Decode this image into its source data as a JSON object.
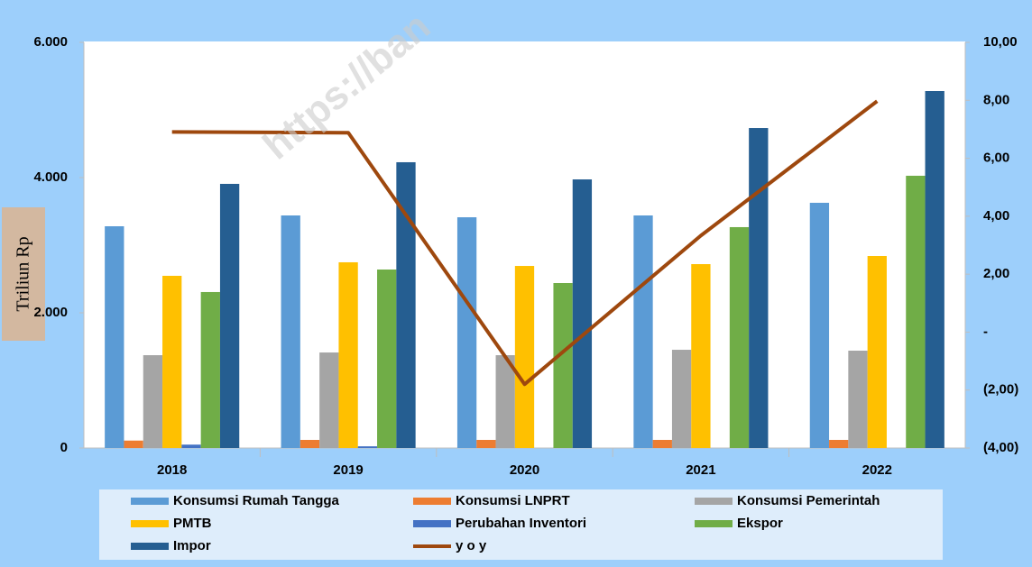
{
  "chart_data": {
    "type": "bar",
    "y_label": "Triliun Rp",
    "watermark": "https://ban",
    "categories": [
      "2018",
      "2019",
      "2020",
      "2021",
      "2022"
    ],
    "series": [
      {
        "name": "Konsumsi Rumah Tangga",
        "color": "#5b9bd5",
        "values": [
          3280,
          3440,
          3413,
          3440,
          3627
        ]
      },
      {
        "name": "Konsumsi LNPRT",
        "color": "#ed7d31",
        "values": [
          110,
          120,
          120,
          120,
          120
        ]
      },
      {
        "name": "Konsumsi Pemerintah",
        "color": "#a5a5a5",
        "values": [
          1373,
          1413,
          1373,
          1453,
          1440
        ]
      },
      {
        "name": "PMTB",
        "color": "#ffc000",
        "values": [
          2547,
          2747,
          2693,
          2720,
          2840
        ]
      },
      {
        "name": "Perubahan Inventori",
        "color": "#4472c4",
        "values": [
          50,
          25,
          0,
          0,
          0
        ]
      },
      {
        "name": "Ekspor",
        "color": "#70ad47",
        "values": [
          2307,
          2640,
          2440,
          3267,
          4027
        ]
      },
      {
        "name": "Impor",
        "color": "#255e91",
        "values": [
          3907,
          4227,
          3973,
          4733,
          5280
        ]
      },
      {
        "name": "y o y",
        "color": "#9e480e",
        "type": "line",
        "axis": "y2",
        "values": [
          6.91,
          6.88,
          -1.8,
          3.33,
          7.97
        ]
      }
    ],
    "ylim": [
      0,
      6000
    ],
    "yticks": [
      0,
      {
        "value": 2000,
        "label": "2.000"
      },
      {
        "value": 4000,
        "label": "4.000"
      },
      {
        "value": 6000,
        "label": "6.000"
      }
    ],
    "y2lim": [
      -4,
      10
    ],
    "y2ticks": [
      {
        "value": -4,
        "label": "(4,00)"
      },
      {
        "value": -2,
        "label": "(2,00)"
      },
      {
        "value": 0,
        "label": "-"
      },
      {
        "value": 2,
        "label": "2,00"
      },
      {
        "value": 4,
        "label": "4,00"
      },
      {
        "value": 6,
        "label": "6,00"
      },
      {
        "value": 8,
        "label": "8,00"
      },
      {
        "value": 10,
        "label": "10,00"
      }
    ],
    "legend": "bottom"
  }
}
